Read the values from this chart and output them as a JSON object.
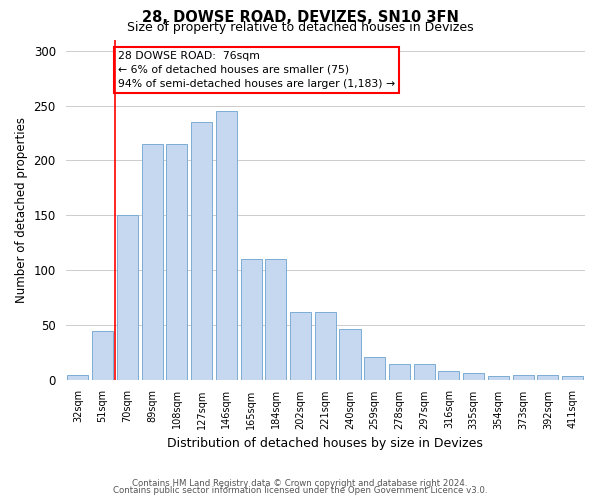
{
  "title1": "28, DOWSE ROAD, DEVIZES, SN10 3FN",
  "title2": "Size of property relative to detached houses in Devizes",
  "xlabel": "Distribution of detached houses by size in Devizes",
  "ylabel": "Number of detached properties",
  "categories": [
    "32sqm",
    "51sqm",
    "70sqm",
    "89sqm",
    "108sqm",
    "127sqm",
    "146sqm",
    "165sqm",
    "184sqm",
    "202sqm",
    "221sqm",
    "240sqm",
    "259sqm",
    "278sqm",
    "297sqm",
    "316sqm",
    "335sqm",
    "354sqm",
    "373sqm",
    "392sqm",
    "411sqm"
  ],
  "values": [
    4,
    44,
    150,
    215,
    215,
    235,
    245,
    110,
    110,
    62,
    62,
    46,
    21,
    14,
    14,
    8,
    6,
    3,
    4,
    4,
    3
  ],
  "bar_color": "#c5d8ef",
  "bar_edge_color": "#7badd4",
  "vline_x": 1.5,
  "vline_color": "red",
  "annotation_text": "28 DOWSE ROAD:  76sqm\n← 6% of detached houses are smaller (75)\n94% of semi-detached houses are larger (1,183) →",
  "annotation_box_color": "white",
  "annotation_box_edge_color": "red",
  "ylim": [
    0,
    310
  ],
  "yticks": [
    0,
    50,
    100,
    150,
    200,
    250,
    300
  ],
  "footer1": "Contains HM Land Registry data © Crown copyright and database right 2024.",
  "footer2": "Contains public sector information licensed under the Open Government Licence v3.0.",
  "bg_color": "#ffffff"
}
